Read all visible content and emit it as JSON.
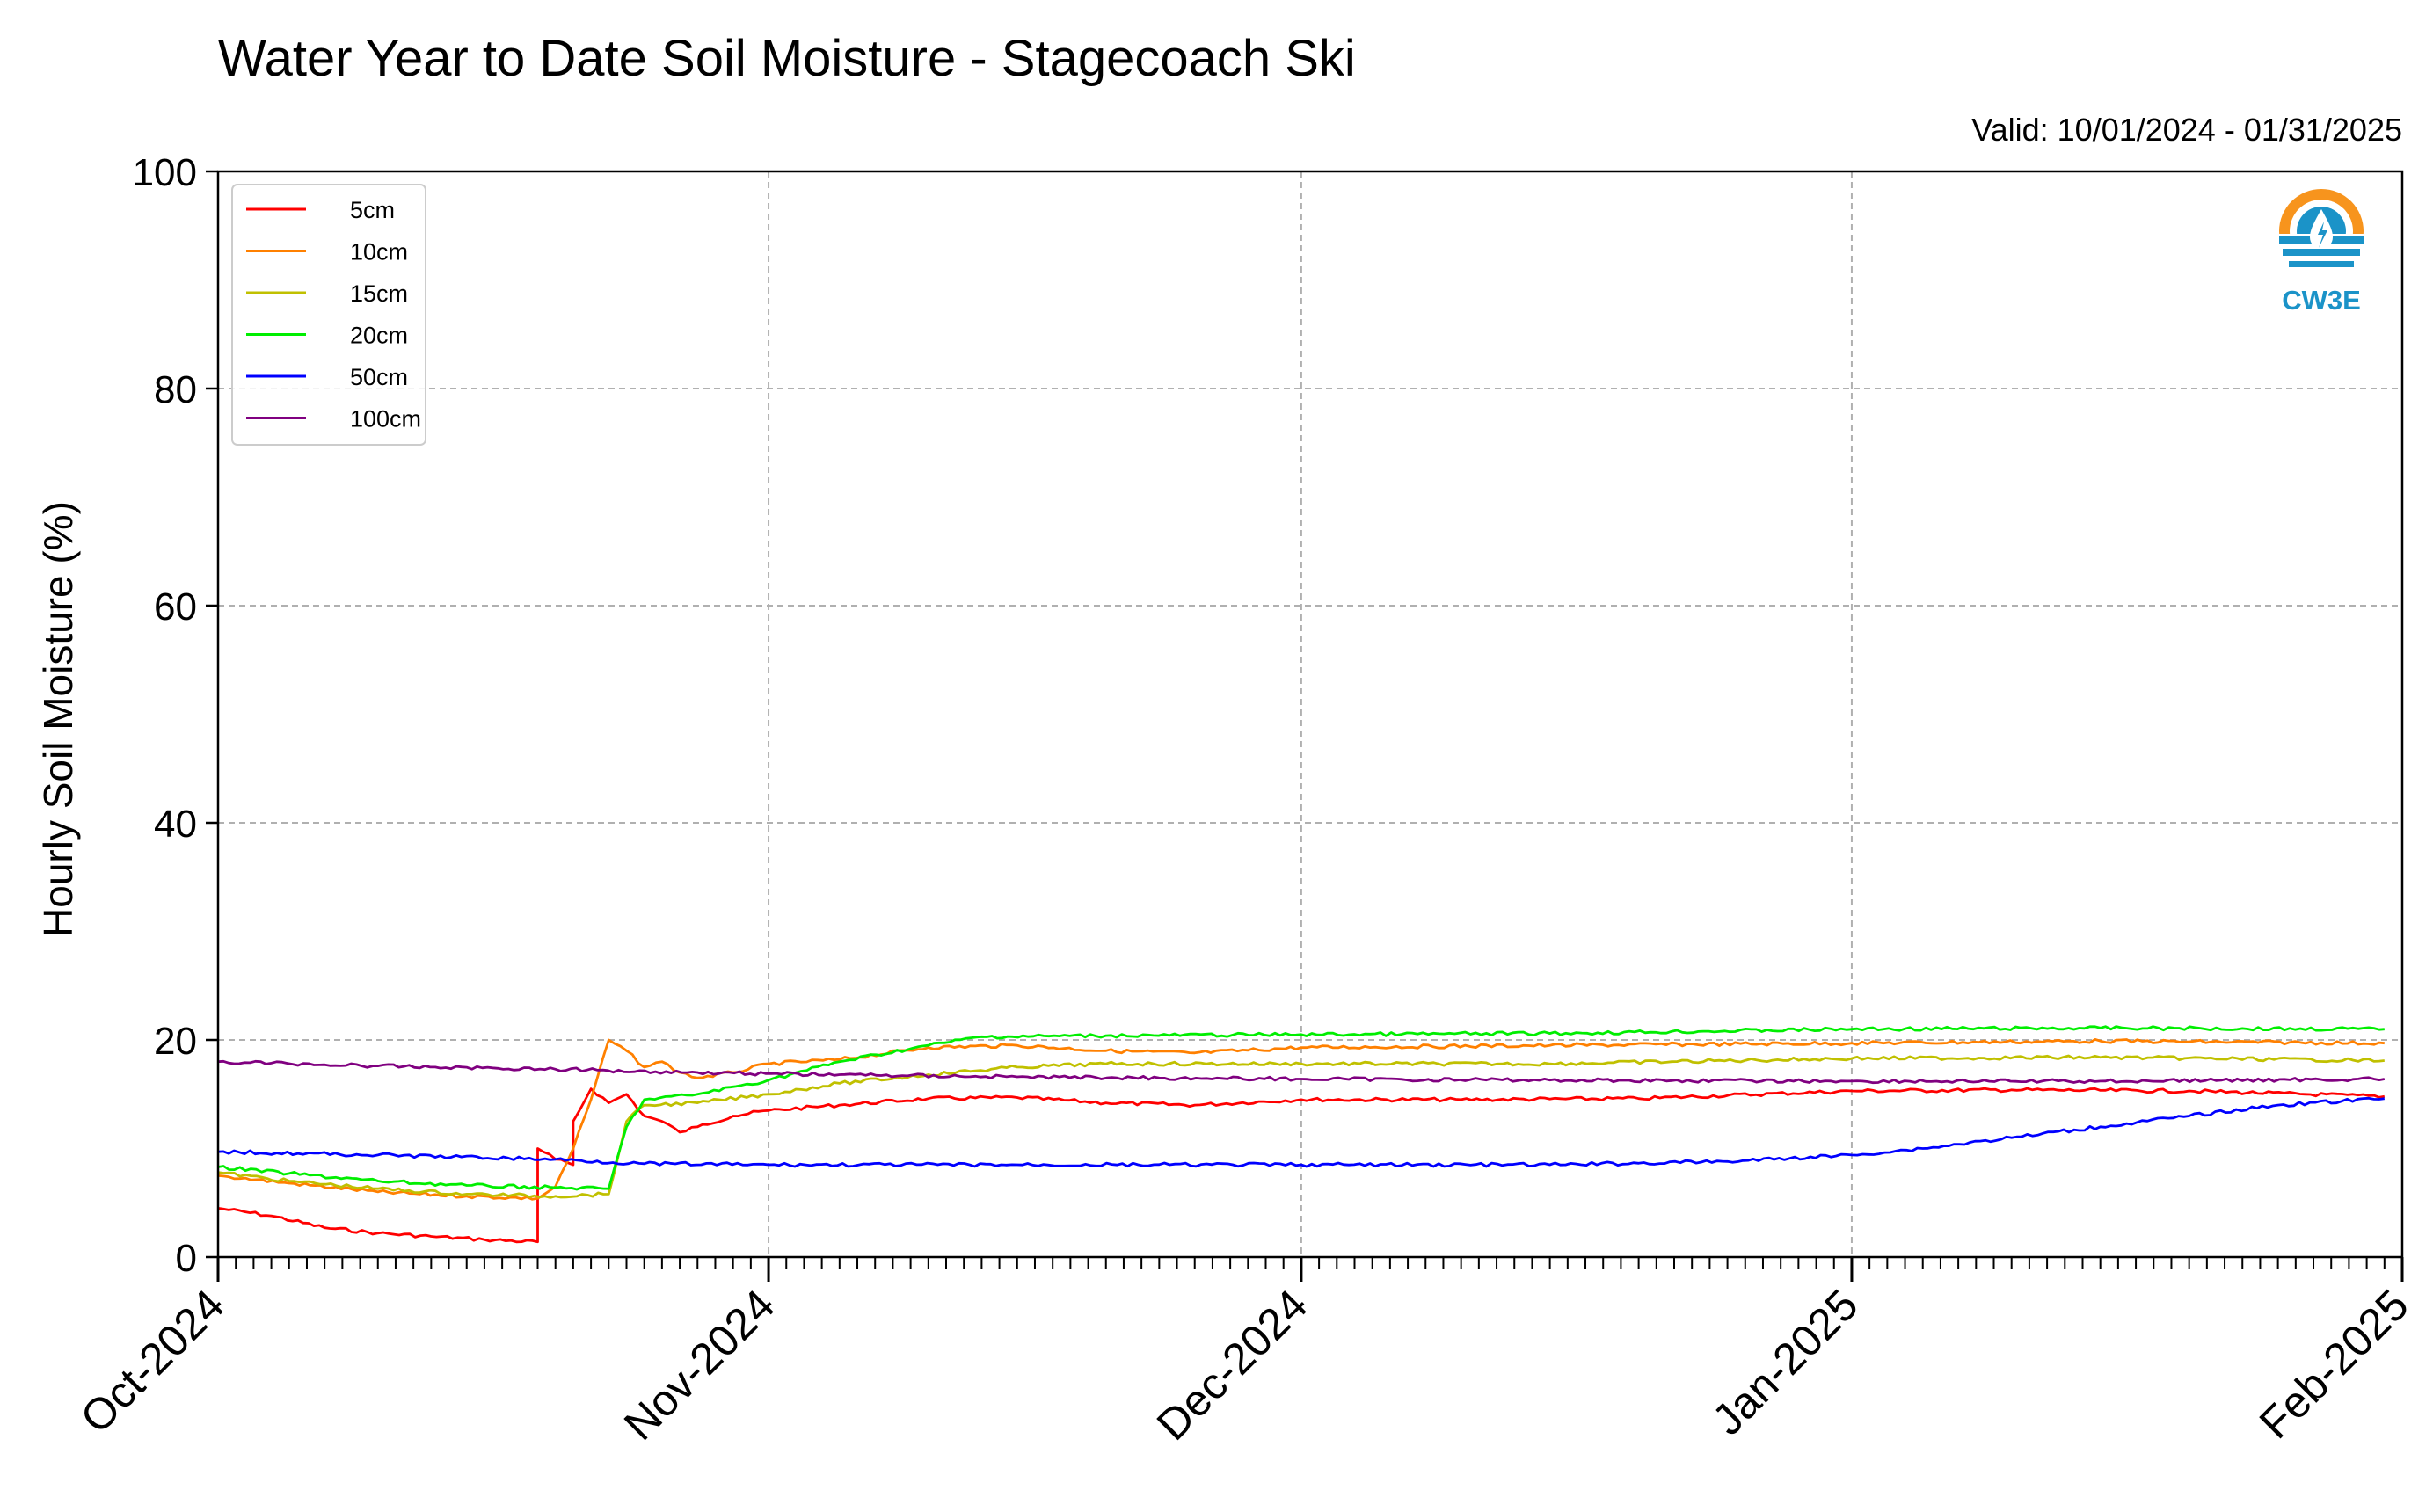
{
  "title": "Water Year to Date Soil Moisture - Stagecoach Ski",
  "subtitle": "Valid: 10/01/2024 - 01/31/2025",
  "logo_text": "CW3E",
  "chart_data": {
    "type": "line",
    "title": "Water Year to Date Soil Moisture - Stagecoach Ski",
    "ylabel": "Hourly Soil Moisture (%)",
    "xlabel": "",
    "xlim": [
      "2024-10-01",
      "2025-02-01"
    ],
    "ylim": [
      0,
      100
    ],
    "yticks": [
      0,
      20,
      40,
      60,
      80,
      100
    ],
    "yticks_labels": [
      "0",
      "20",
      "40",
      "60",
      "80",
      "100"
    ],
    "xticks": [
      "2024-10-01",
      "2024-11-01",
      "2024-12-01",
      "2025-01-01",
      "2025-02-01"
    ],
    "xticks_labels": [
      "Oct-2024",
      "Nov-2024",
      "Dec-2024",
      "Jan-2025",
      "Feb-2025"
    ],
    "grid": true,
    "legend_position": "top-left",
    "series": [
      {
        "name": "5cm",
        "color": "#ff0000",
        "points": [
          [
            "2024-10-01",
            4.5
          ],
          [
            "2024-10-04",
            3.8
          ],
          [
            "2024-10-07",
            2.7
          ],
          [
            "2024-10-10",
            2.2
          ],
          [
            "2024-10-13",
            1.9
          ],
          [
            "2024-10-16",
            1.6
          ],
          [
            "2024-10-19",
            1.4
          ],
          [
            "2024-10-19",
            10.0
          ],
          [
            "2024-10-20",
            9.0
          ],
          [
            "2024-10-21",
            8.5
          ],
          [
            "2024-10-21",
            12.5
          ],
          [
            "2024-10-22",
            15.5
          ],
          [
            "2024-10-23",
            14.2
          ],
          [
            "2024-10-24",
            15.0
          ],
          [
            "2024-10-25",
            13.0
          ],
          [
            "2024-10-26",
            12.5
          ],
          [
            "2024-10-27",
            11.5
          ],
          [
            "2024-10-28",
            12.0
          ],
          [
            "2024-10-30",
            13.0
          ],
          [
            "2024-11-01",
            13.5
          ],
          [
            "2024-11-05",
            14.0
          ],
          [
            "2024-11-10",
            14.6
          ],
          [
            "2024-11-15",
            14.7
          ],
          [
            "2024-11-20",
            14.2
          ],
          [
            "2024-11-25",
            14.0
          ],
          [
            "2024-12-01",
            14.5
          ],
          [
            "2024-12-10",
            14.5
          ],
          [
            "2024-12-20",
            14.6
          ],
          [
            "2025-01-01",
            15.3
          ],
          [
            "2025-01-10",
            15.4
          ],
          [
            "2025-01-20",
            15.3
          ],
          [
            "2025-01-31",
            14.8
          ]
        ]
      },
      {
        "name": "10cm",
        "color": "#ff8000",
        "points": [
          [
            "2024-10-01",
            7.5
          ],
          [
            "2024-10-05",
            6.8
          ],
          [
            "2024-10-10",
            6.0
          ],
          [
            "2024-10-15",
            5.6
          ],
          [
            "2024-10-19",
            5.4
          ],
          [
            "2024-10-20",
            6.5
          ],
          [
            "2024-10-21",
            10.0
          ],
          [
            "2024-10-22",
            14.5
          ],
          [
            "2024-10-23",
            20.0
          ],
          [
            "2024-10-24",
            19.0
          ],
          [
            "2024-10-25",
            17.5
          ],
          [
            "2024-10-26",
            18.0
          ],
          [
            "2024-10-27",
            17.0
          ],
          [
            "2024-10-28",
            16.5
          ],
          [
            "2024-10-30",
            17.0
          ],
          [
            "2024-11-01",
            17.8
          ],
          [
            "2024-11-05",
            18.2
          ],
          [
            "2024-11-10",
            19.3
          ],
          [
            "2024-11-15",
            19.5
          ],
          [
            "2024-11-20",
            19.0
          ],
          [
            "2024-11-25",
            18.8
          ],
          [
            "2024-12-01",
            19.3
          ],
          [
            "2024-12-15",
            19.5
          ],
          [
            "2025-01-01",
            19.7
          ],
          [
            "2025-01-15",
            19.9
          ],
          [
            "2025-01-31",
            19.7
          ]
        ]
      },
      {
        "name": "15cm",
        "color": "#c0c000",
        "points": [
          [
            "2024-10-01",
            7.8
          ],
          [
            "2024-10-05",
            7.0
          ],
          [
            "2024-10-10",
            6.3
          ],
          [
            "2024-10-15",
            5.8
          ],
          [
            "2024-10-20",
            5.6
          ],
          [
            "2024-10-23",
            5.8
          ],
          [
            "2024-10-24",
            12.5
          ],
          [
            "2024-10-25",
            14.0
          ],
          [
            "2024-10-28",
            14.2
          ],
          [
            "2024-11-01",
            15.0
          ],
          [
            "2024-11-05",
            16.0
          ],
          [
            "2024-11-10",
            16.8
          ],
          [
            "2024-11-15",
            17.5
          ],
          [
            "2024-11-20",
            17.8
          ],
          [
            "2024-12-01",
            17.8
          ],
          [
            "2024-12-15",
            17.8
          ],
          [
            "2025-01-01",
            18.3
          ],
          [
            "2025-01-15",
            18.4
          ],
          [
            "2025-01-31",
            18.1
          ]
        ]
      },
      {
        "name": "20cm",
        "color": "#00ee00",
        "points": [
          [
            "2024-10-01",
            8.3
          ],
          [
            "2024-10-05",
            7.7
          ],
          [
            "2024-10-10",
            7.0
          ],
          [
            "2024-10-15",
            6.6
          ],
          [
            "2024-10-20",
            6.4
          ],
          [
            "2024-10-23",
            6.3
          ],
          [
            "2024-10-24",
            12.0
          ],
          [
            "2024-10-25",
            14.5
          ],
          [
            "2024-10-28",
            15.0
          ],
          [
            "2024-11-01",
            16.3
          ],
          [
            "2024-11-05",
            18.0
          ],
          [
            "2024-11-10",
            19.5
          ],
          [
            "2024-11-13",
            20.3
          ],
          [
            "2024-11-20",
            20.4
          ],
          [
            "2024-12-01",
            20.5
          ],
          [
            "2024-12-15",
            20.6
          ],
          [
            "2025-01-01",
            21.0
          ],
          [
            "2025-01-15",
            21.1
          ],
          [
            "2025-01-31",
            21.0
          ]
        ]
      },
      {
        "name": "50cm",
        "color": "#0000ff",
        "points": [
          [
            "2024-10-01",
            9.7
          ],
          [
            "2024-10-10",
            9.4
          ],
          [
            "2024-10-20",
            9.0
          ],
          [
            "2024-10-25",
            8.6
          ],
          [
            "2024-11-01",
            8.5
          ],
          [
            "2024-11-15",
            8.5
          ],
          [
            "2024-12-01",
            8.5
          ],
          [
            "2024-12-15",
            8.5
          ],
          [
            "2024-12-25",
            8.8
          ],
          [
            "2025-01-01",
            9.4
          ],
          [
            "2025-01-05",
            10.0
          ],
          [
            "2025-01-10",
            11.0
          ],
          [
            "2025-01-15",
            12.0
          ],
          [
            "2025-01-20",
            13.0
          ],
          [
            "2025-01-25",
            14.0
          ],
          [
            "2025-01-31",
            14.6
          ]
        ]
      },
      {
        "name": "100cm",
        "color": "#800080",
        "points": [
          [
            "2024-10-01",
            18.0
          ],
          [
            "2024-10-10",
            17.6
          ],
          [
            "2024-10-20",
            17.3
          ],
          [
            "2024-10-28",
            17.0
          ],
          [
            "2024-11-05",
            16.8
          ],
          [
            "2024-11-15",
            16.6
          ],
          [
            "2024-12-01",
            16.4
          ],
          [
            "2024-12-15",
            16.3
          ],
          [
            "2025-01-01",
            16.2
          ],
          [
            "2025-01-15",
            16.2
          ],
          [
            "2025-01-31",
            16.4
          ]
        ]
      }
    ]
  }
}
